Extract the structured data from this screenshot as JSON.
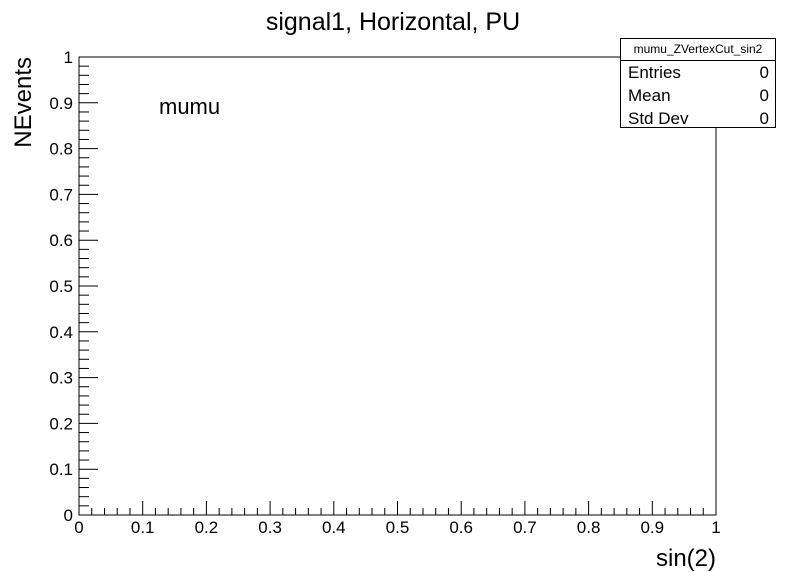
{
  "chart_data": {
    "type": "bar",
    "title": "signal1, Horizontal, PU",
    "xlabel": "sin(2)",
    "ylabel": "NEvents",
    "xlim": [
      0,
      1
    ],
    "ylim": [
      0,
      1
    ],
    "x_ticks": [
      "0",
      "0.1",
      "0.2",
      "0.3",
      "0.4",
      "0.5",
      "0.6",
      "0.7",
      "0.8",
      "0.9",
      "1"
    ],
    "y_ticks": [
      "0",
      "0.1",
      "0.2",
      "0.3",
      "0.4",
      "0.5",
      "0.6",
      "0.7",
      "0.8",
      "0.9",
      "1"
    ],
    "values": [],
    "grid": false,
    "annotation": "mumu",
    "stats_box": {
      "name": "mumu_ZVertexCut_sin2",
      "rows": [
        {
          "label": "Entries",
          "value": "0"
        },
        {
          "label": "Mean",
          "value": "0"
        },
        {
          "label": "Std Dev",
          "value": "0"
        }
      ]
    }
  }
}
